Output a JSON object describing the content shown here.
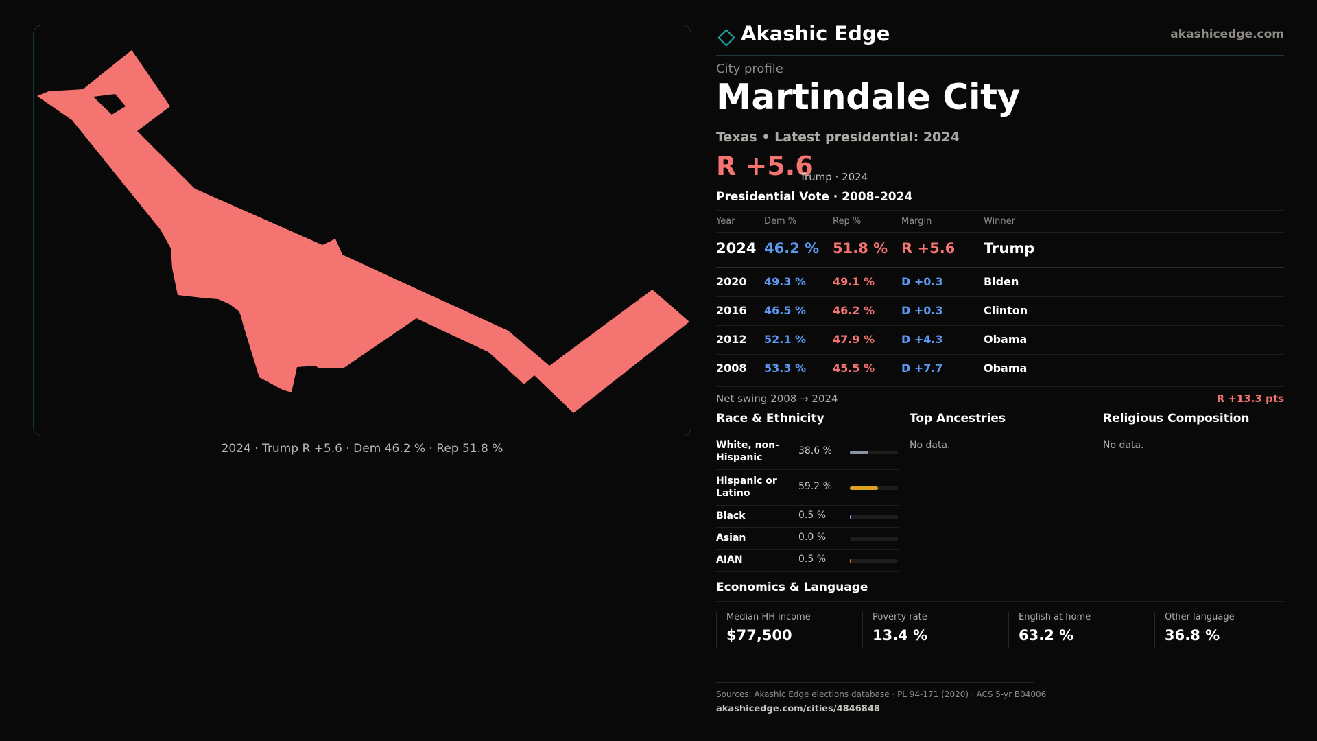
{
  "brand": {
    "name": "Akashic Edge",
    "url": "akashicedge.com"
  },
  "profile": {
    "kicker": "City profile",
    "city": "Martindale City",
    "state_line": "Texas • Latest presidential: 2024",
    "headline_margin": "R +5.6",
    "headline_sub": "Trump · 2024"
  },
  "map": {
    "caption": "2024 · Trump R +5.6 · Dem 46.2 % · Rep 51.8 %",
    "fill_color": "#f47472"
  },
  "vote": {
    "title": "Presidential Vote · 2008–2024",
    "headers": {
      "year": "Year",
      "dem": "Dem %",
      "rep": "Rep %",
      "margin": "Margin",
      "winner": "Winner"
    },
    "rows": [
      {
        "year": "2024",
        "dem": "46.2 %",
        "rep": "51.8 %",
        "margin": "R +5.6",
        "winner": "Trump"
      },
      {
        "year": "2020",
        "dem": "49.3 %",
        "rep": "49.1 %",
        "margin": "D +0.3",
        "winner": "Biden"
      },
      {
        "year": "2016",
        "dem": "46.5 %",
        "rep": "46.2 %",
        "margin": "D +0.3",
        "winner": "Clinton"
      },
      {
        "year": "2012",
        "dem": "52.1 %",
        "rep": "47.9 %",
        "margin": "D +4.3",
        "winner": "Obama"
      },
      {
        "year": "2008",
        "dem": "53.3 %",
        "rep": "45.5 %",
        "margin": "D +7.7",
        "winner": "Obama"
      }
    ],
    "swing_label": "Net swing 2008 → 2024",
    "swing_value": "R +13.3 pts"
  },
  "race": {
    "title": "Race & Ethnicity",
    "rows": [
      {
        "label": "White, non-Hispanic",
        "pct": "38.6 %",
        "share": 0.386,
        "color": "#8a93a3"
      },
      {
        "label": "Hispanic or Latino",
        "pct": "59.2 %",
        "share": 0.592,
        "color": "#e0a11b"
      },
      {
        "label": "Black",
        "pct": "0.5 %",
        "share": 0.005,
        "color": "#9b8ef0"
      },
      {
        "label": "Asian",
        "pct": "0.0 %",
        "share": 0.0,
        "color": "#5b98f0"
      },
      {
        "label": "AIAN",
        "pct": "0.5 %",
        "share": 0.005,
        "color": "#e0733b"
      }
    ]
  },
  "ancestries": {
    "title": "Top Ancestries",
    "empty": "No data."
  },
  "religion": {
    "title": "Religious Composition",
    "empty": "No data."
  },
  "economics": {
    "title": "Economics & Language",
    "stats": [
      {
        "label": "Median HH income",
        "value": "$77,500"
      },
      {
        "label": "Poverty rate",
        "value": "13.4 %"
      },
      {
        "label": "English at home",
        "value": "63.2 %"
      },
      {
        "label": "Other language",
        "value": "36.8 %"
      }
    ]
  },
  "footer": {
    "sources": "Sources: Akashic Edge elections database · PL 94-171 (2020) · ACS 5-yr B04006",
    "page_url": "akashicedge.com/cities/4846848"
  }
}
